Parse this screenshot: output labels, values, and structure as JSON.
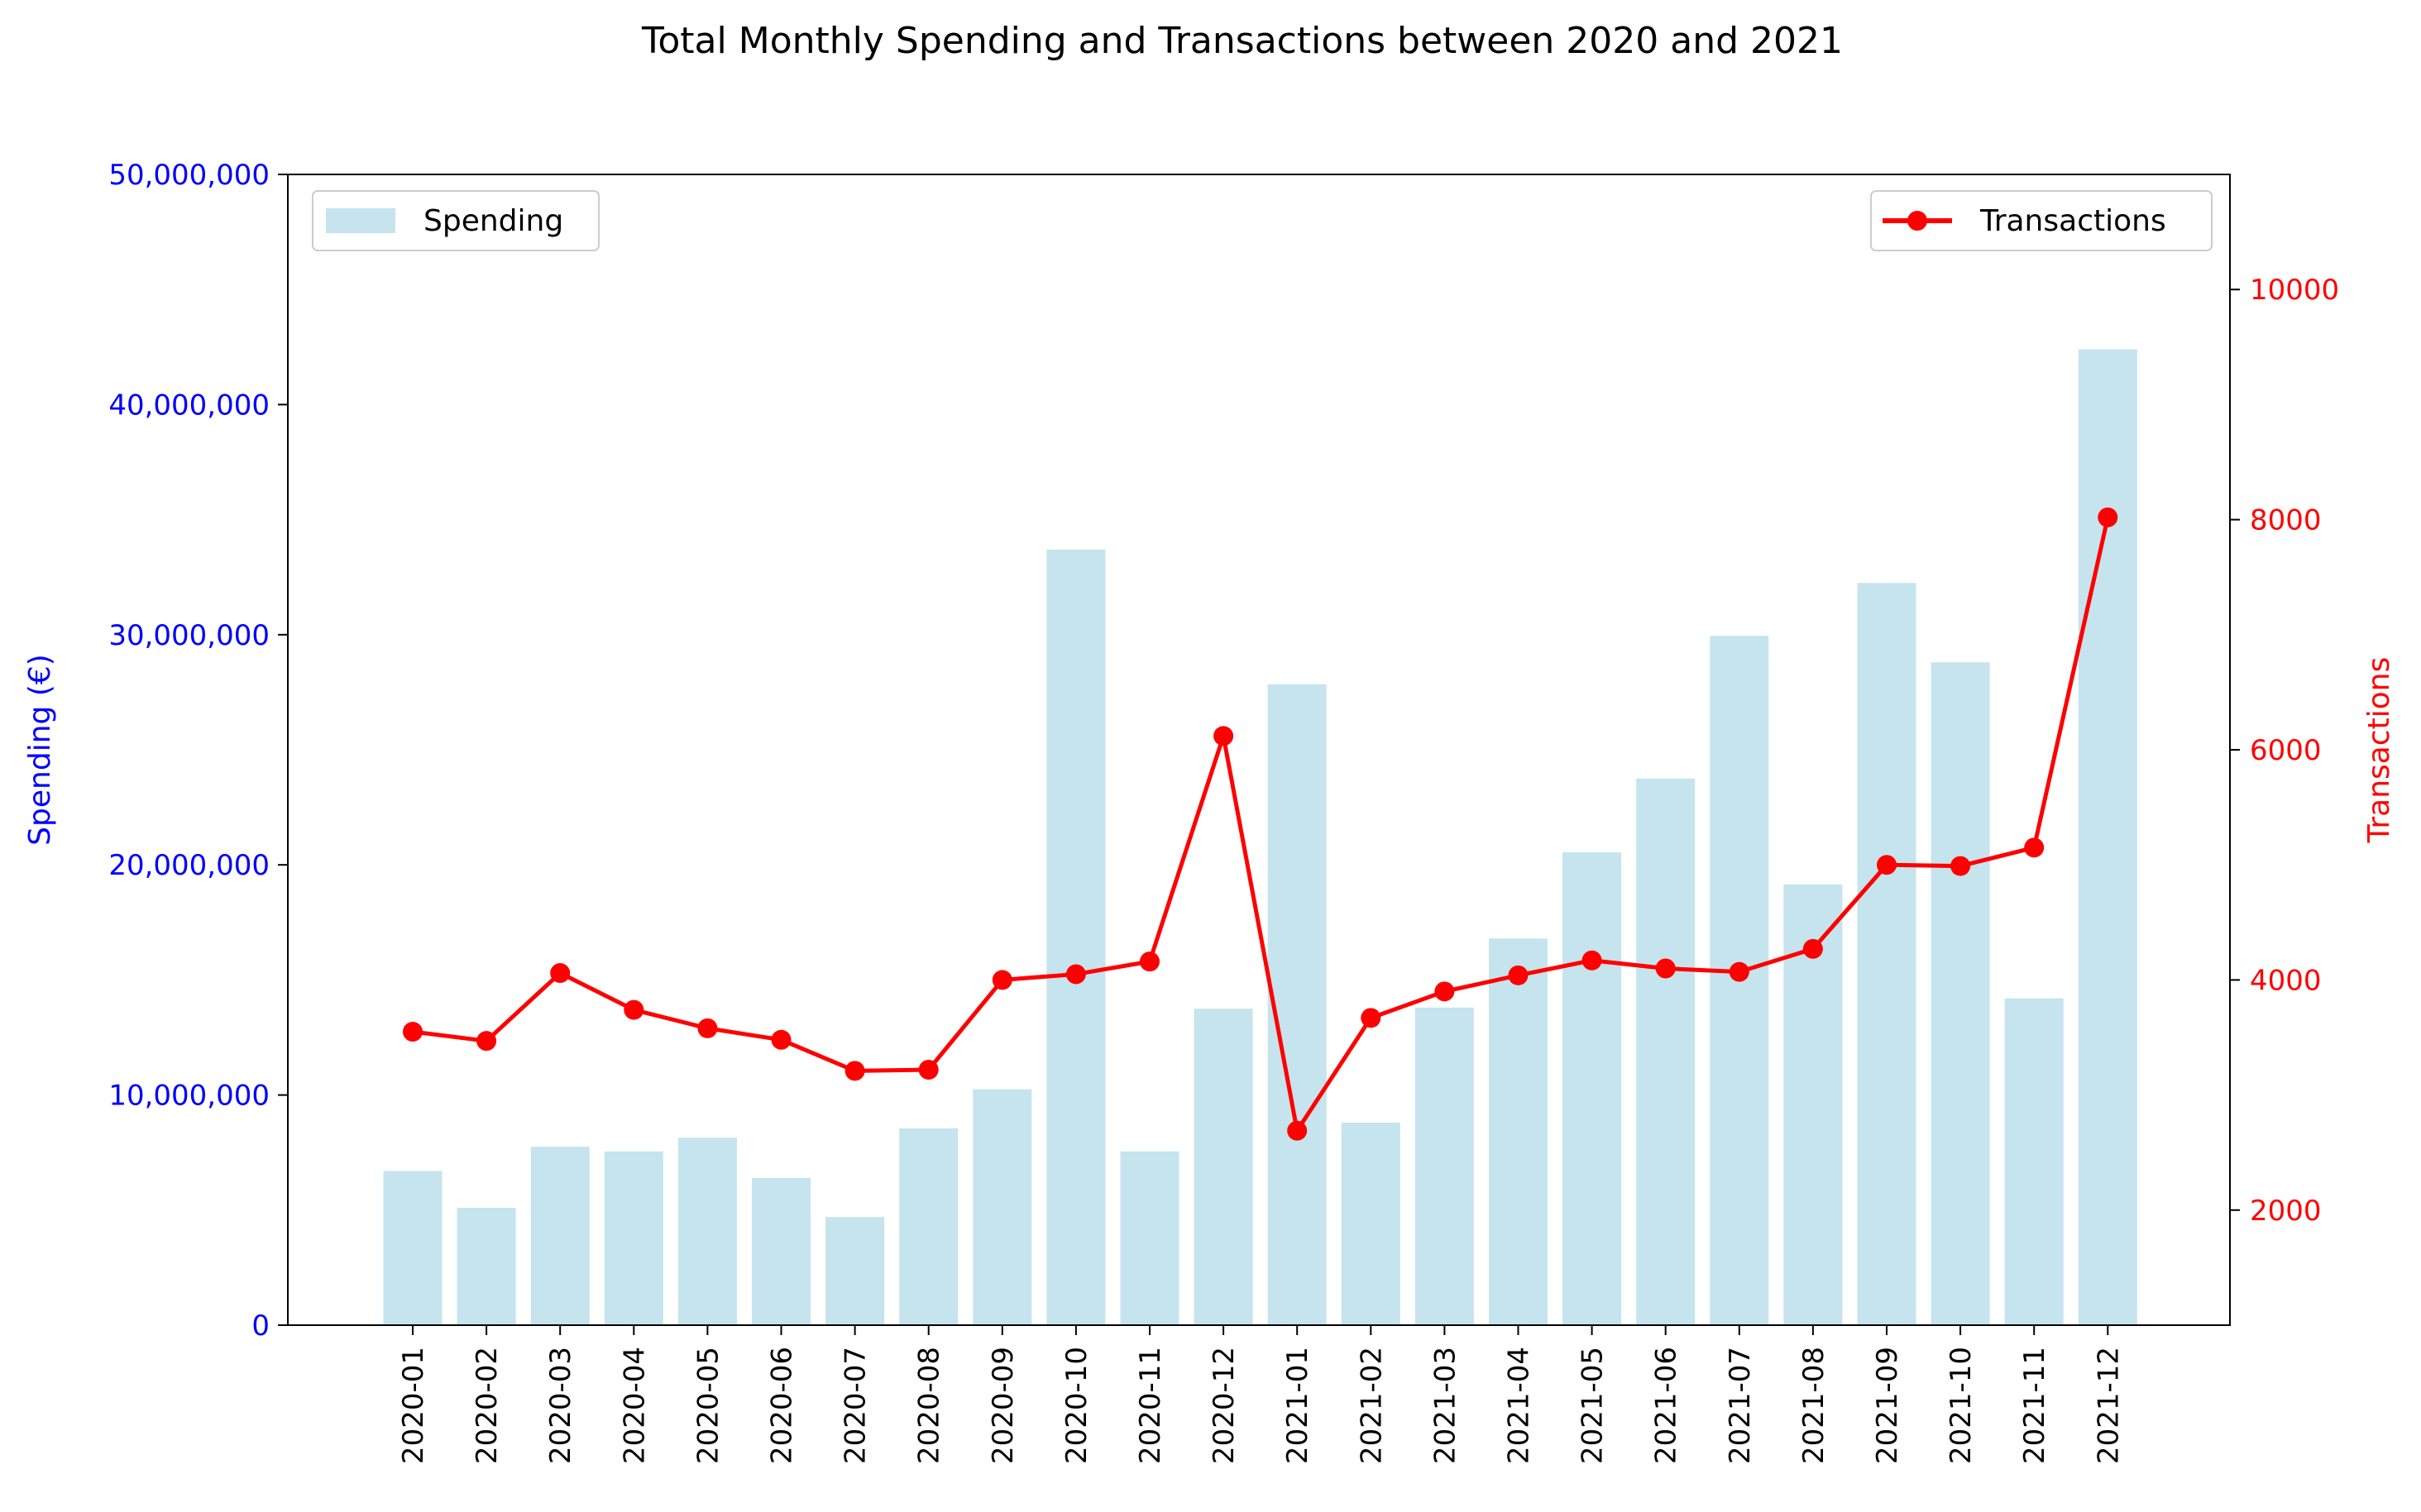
{
  "chart_data": {
    "type": "bar+line",
    "title": "Total Monthly Spending and Transactions between 2020 and 2021",
    "categories": [
      "2020-01",
      "2020-02",
      "2020-03",
      "2020-04",
      "2020-05",
      "2020-06",
      "2020-07",
      "2020-08",
      "2020-09",
      "2020-10",
      "2020-11",
      "2020-12",
      "2021-01",
      "2021-02",
      "2021-03",
      "2021-04",
      "2021-05",
      "2021-06",
      "2021-07",
      "2021-08",
      "2021-09",
      "2021-10",
      "2021-11",
      "2021-12"
    ],
    "series": [
      {
        "name": "Spending",
        "type": "bar",
        "axis": "left",
        "color": "#add8e6",
        "values": [
          6700000,
          5100000,
          7750000,
          7550000,
          8150000,
          6400000,
          4700000,
          8550000,
          10250000,
          33700000,
          7550000,
          13750000,
          27850000,
          8800000,
          13800000,
          16800000,
          20550000,
          23750000,
          29950000,
          19150000,
          32250000,
          28800000,
          14200000,
          42400000
        ]
      },
      {
        "name": "Transactions",
        "type": "line",
        "axis": "right",
        "color": "#ff0000",
        "values": [
          3550,
          3470,
          4060,
          3740,
          3580,
          3480,
          3210,
          3220,
          4000,
          4050,
          4160,
          6120,
          2690,
          3670,
          3900,
          4040,
          4170,
          4100,
          4070,
          4270,
          5000,
          4990,
          5150,
          8020
        ]
      }
    ],
    "ylabel_left": "Spending (€)",
    "ylabel_right": "Transactions",
    "ylim_left": [
      0,
      50000000
    ],
    "ylim_right": [
      1000,
      11000
    ],
    "yticks_left": [
      "0",
      "10,000,000",
      "20,000,000",
      "30,000,000",
      "40,000,000",
      "50,000,000"
    ],
    "yticks_right": [
      "2000",
      "4000",
      "6000",
      "8000",
      "10000"
    ],
    "yticks_right_values": [
      2000,
      4000,
      6000,
      8000,
      10000
    ],
    "legend_left": {
      "label": "Spending",
      "placement": "upper-left"
    },
    "legend_right": {
      "label": "Transactions",
      "placement": "upper-right"
    },
    "grid": false
  }
}
